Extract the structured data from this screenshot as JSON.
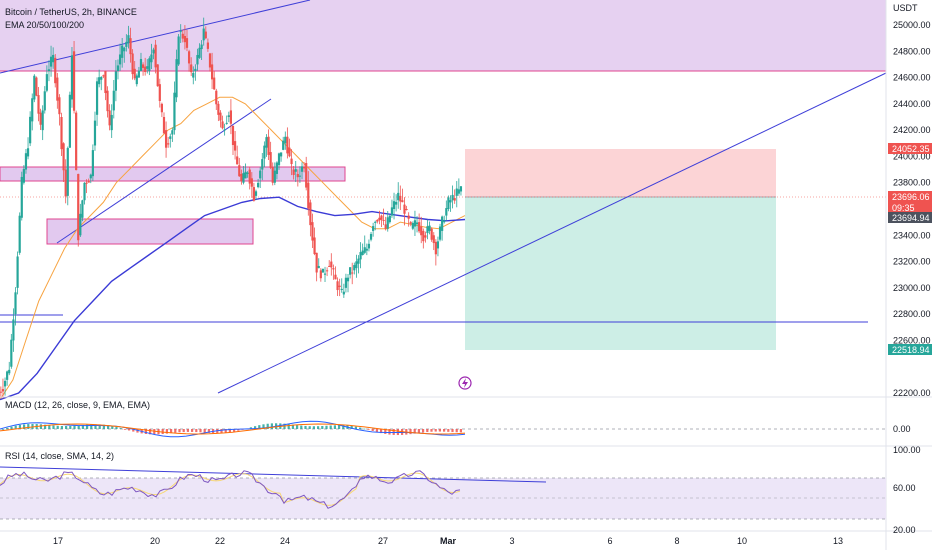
{
  "header": {
    "symbol": "Bitcoin / TetherUS, 2h, BINANCE",
    "indicator": "EMA 20/50/100/200",
    "currency": "USDT"
  },
  "colors": {
    "bull": "#26a69a",
    "bear": "#ef5350",
    "ema_fast": "#f7a340",
    "ema_slow": "#3b3bd6",
    "zone": "#e2c9ef",
    "zone_border": "#e0458f",
    "trendline": "#3f3fd8",
    "stop": "#fcd4d6",
    "target": "#cdeee6"
  },
  "chart_data": [
    {
      "type": "candlestick",
      "title": "Bitcoin / TetherUS, 2h, BINANCE",
      "price_ticks": [
        25000,
        24800,
        24600,
        24400,
        24200,
        24000,
        23800,
        23400,
        23200,
        23000,
        22800,
        22600,
        22200
      ],
      "price_ticks_text": [
        "25000.00",
        "24800.00",
        "24600.00",
        "24400.00",
        "24200.00",
        "24000.00",
        "23800.00",
        "23400.00",
        "23200.00",
        "23000.00",
        "22800.00",
        "22600.00",
        "22200.00"
      ],
      "price_range": [
        22130,
        25290
      ],
      "date_ticks": [
        "17",
        "20",
        "22",
        "24",
        "27",
        "Mar",
        "3",
        "6",
        "8",
        "10",
        "13"
      ],
      "series": [
        {
          "name": "EMA 20/50/100/200",
          "style": "line",
          "color": "#f7a340"
        },
        {
          "name": "EMA 20/50/100/200",
          "style": "line",
          "color": "#3b3bd6"
        }
      ],
      "candles_close_path": [
        22250,
        22400,
        23000,
        23800,
        24100,
        24600,
        24200,
        24650,
        24750,
        24300,
        23700,
        24800,
        23400,
        23800,
        23850,
        24550,
        24650,
        24200,
        24650,
        24800,
        24900,
        24550,
        24700,
        24650,
        24850,
        24400,
        24100,
        24200,
        24950,
        24900,
        24600,
        24750,
        24950,
        24700,
        24400,
        24200,
        24350,
        24000,
        23800,
        23900,
        23700,
        23900,
        24150,
        23800,
        24000,
        24150,
        23900,
        23850,
        23950,
        23500,
        23150,
        23100,
        23200,
        23050,
        22950,
        23100,
        23150,
        23250,
        23300,
        23500,
        23550,
        23450,
        23600,
        23700,
        23600,
        23450,
        23500,
        23400,
        23450,
        23300,
        23500,
        23650,
        23700,
        23750
      ],
      "ema_fast_values": [
        22150,
        22300,
        22600,
        22900,
        23100,
        23300,
        23450,
        23550,
        23650,
        23800,
        23900,
        24000,
        24100,
        24200,
        24250,
        24350,
        24400,
        24450,
        24450,
        24400,
        24300,
        24200,
        24100,
        24000,
        23900,
        23800,
        23700,
        23600,
        23500,
        23450,
        23450,
        23500,
        23480,
        23460,
        23450,
        23500,
        23550
      ],
      "ema_slow_values": [
        22150,
        22200,
        22350,
        22550,
        22750,
        22900,
        23050,
        23150,
        23250,
        23350,
        23450,
        23550,
        23600,
        23650,
        23680,
        23690,
        23620,
        23580,
        23550,
        23560,
        23580,
        23560,
        23540,
        23520,
        23510,
        23520
      ],
      "zones": [
        {
          "name": "upper supply",
          "from": 24650,
          "to": 25290
        },
        {
          "name": "middle zone",
          "from": 23850,
          "to": 23950
        },
        {
          "name": "lower zone",
          "from": 23330,
          "to": 23510
        }
      ],
      "horizontal_line": 22730,
      "position": {
        "entry": 23696.06,
        "stop": 24052.35,
        "target": 22518.94
      },
      "price_tags": [
        {
          "value": "24052.35",
          "color": "#ef5350"
        },
        {
          "value": "23696.06",
          "color": "#ef5350"
        },
        {
          "value": "09:35",
          "color": "#ef5350"
        },
        {
          "value": "23694.94",
          "color": "#4c525e"
        },
        {
          "value": "22518.94",
          "color": "#26a69a"
        }
      ]
    },
    {
      "type": "line",
      "title": "MACD (12, 26, close, 9, EMA, EMA)",
      "ticks": [
        "0.00"
      ]
    },
    {
      "type": "line",
      "title": "RSI (14, close, SMA, 14, 2)",
      "ticks": [
        "100.00",
        "60.00",
        "20.00"
      ],
      "levels": [
        70,
        50,
        30
      ]
    }
  ],
  "macd_label": "MACD (12, 26, close, 9, EMA, EMA)",
  "rsi_label": "RSI (14, close, SMA, 14, 2)",
  "macd_tick": "0.00",
  "rsi_ticks": [
    "100.00",
    "60.00",
    "20.00"
  ],
  "event_icon": "lightning-icon"
}
